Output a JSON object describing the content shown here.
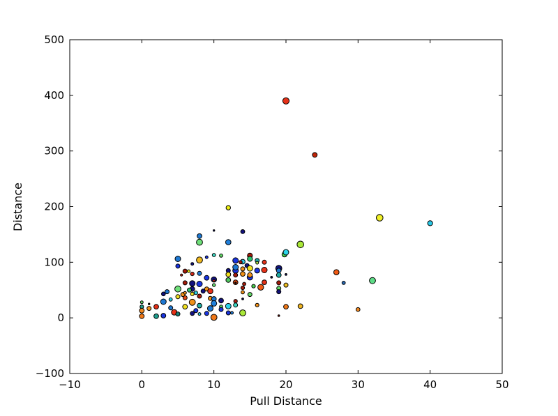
{
  "figure": {
    "background": "#ffffff",
    "frame_color": "#000000"
  },
  "chart_data": {
    "type": "scatter",
    "title": "",
    "xlabel": "Pull Distance",
    "ylabel": "Distance",
    "xlim": [
      -10,
      50
    ],
    "ylim": [
      -100,
      500
    ],
    "xticks": [
      -10,
      0,
      10,
      20,
      30,
      40,
      50
    ],
    "yticks": [
      -100,
      0,
      100,
      200,
      300,
      400,
      500
    ],
    "grid": false,
    "legend": null,
    "marker_edge_color": "#000000",
    "marker_shape": "circle",
    "points": [
      {
        "x": 20,
        "y": 390,
        "r": 4.6,
        "c": "#e63118"
      },
      {
        "x": 24,
        "y": 293,
        "r": 3.4,
        "c": "#c02508"
      },
      {
        "x": 33,
        "y": 180,
        "r": 4.8,
        "c": "#f0f028"
      },
      {
        "x": 40,
        "y": 170,
        "r": 3.6,
        "c": "#28c8e6"
      },
      {
        "x": 27,
        "y": 82,
        "r": 3.8,
        "c": "#f05a14"
      },
      {
        "x": 28,
        "y": 63,
        "r": 2.4,
        "c": "#2a6ab4"
      },
      {
        "x": 32,
        "y": 67,
        "r": 4.4,
        "c": "#5ddc86"
      },
      {
        "x": 30,
        "y": 15,
        "r": 2.8,
        "c": "#f08822"
      },
      {
        "x": 12,
        "y": 198,
        "r": 3.2,
        "c": "#eef014"
      },
      {
        "x": 10,
        "y": 157,
        "r": 1.2,
        "c": "#101060"
      },
      {
        "x": 14,
        "y": 155,
        "r": 2.9,
        "c": "#12127e"
      },
      {
        "x": 8,
        "y": 147,
        "r": 3.4,
        "c": "#1e78d2"
      },
      {
        "x": 8,
        "y": 136,
        "r": 4.4,
        "c": "#6fe07a"
      },
      {
        "x": 12,
        "y": 136,
        "r": 3.8,
        "c": "#2080dc"
      },
      {
        "x": 22,
        "y": 132,
        "r": 4.8,
        "c": "#aae838"
      },
      {
        "x": 19.8,
        "y": 114,
        "r": 3.6,
        "c": "#49d04e"
      },
      {
        "x": 20,
        "y": 118,
        "r": 4.0,
        "c": "#2cd3e8"
      },
      {
        "x": 5,
        "y": 106,
        "r": 4.0,
        "c": "#1e78d2"
      },
      {
        "x": 8,
        "y": 104,
        "r": 4.4,
        "c": "#f0b81e"
      },
      {
        "x": 10,
        "y": 113,
        "r": 2.4,
        "c": "#3cd6c0"
      },
      {
        "x": 11,
        "y": 112,
        "r": 2.4,
        "c": "#62d868"
      },
      {
        "x": 9,
        "y": 109,
        "r": 2.0,
        "c": "#1a35e0"
      },
      {
        "x": 7,
        "y": 97,
        "r": 2.0,
        "c": "#12127e"
      },
      {
        "x": 13,
        "y": 103,
        "r": 4.0,
        "c": "#1a35e0"
      },
      {
        "x": 14,
        "y": 101,
        "r": 3.4,
        "c": "#30c8e8"
      },
      {
        "x": 13.7,
        "y": 100,
        "r": 2.4,
        "c": "#a51b0b"
      },
      {
        "x": 15,
        "y": 112,
        "r": 3.6,
        "c": "#a51b0b"
      },
      {
        "x": 15,
        "y": 106,
        "r": 3.6,
        "c": "#2dbf6e"
      },
      {
        "x": 16,
        "y": 103,
        "r": 3.0,
        "c": "#1faaa0"
      },
      {
        "x": 17,
        "y": 100,
        "r": 3.0,
        "c": "#e63118"
      },
      {
        "x": 16,
        "y": 99,
        "r": 2.0,
        "c": "#b4ec46"
      },
      {
        "x": 5,
        "y": 93,
        "r": 3.0,
        "c": "#1a35e0"
      },
      {
        "x": 6,
        "y": 84,
        "r": 3.0,
        "c": "#a51b0b"
      },
      {
        "x": 6.5,
        "y": 84,
        "r": 2.0,
        "c": "#f0f017"
      },
      {
        "x": 7,
        "y": 79,
        "r": 2.6,
        "c": "#d02818"
      },
      {
        "x": 5.5,
        "y": 77,
        "r": 1.6,
        "c": "#d02818"
      },
      {
        "x": 8,
        "y": 80,
        "r": 3.0,
        "c": "#1e78d2"
      },
      {
        "x": 9,
        "y": 72,
        "r": 3.4,
        "c": "#1a35e0"
      },
      {
        "x": 10,
        "y": 69,
        "r": 3.8,
        "c": "#12127e"
      },
      {
        "x": 10,
        "y": 67,
        "r": 1.6,
        "c": "#e63118"
      },
      {
        "x": 10,
        "y": 59,
        "r": 2.2,
        "c": "#62d868"
      },
      {
        "x": 12,
        "y": 85,
        "r": 3.0,
        "c": "#12127e"
      },
      {
        "x": 12,
        "y": 78,
        "r": 3.4,
        "c": "#f0e020"
      },
      {
        "x": 13,
        "y": 85,
        "r": 4.0,
        "c": "#1a35e0"
      },
      {
        "x": 12,
        "y": 68,
        "r": 3.4,
        "c": "#50c860"
      },
      {
        "x": 13,
        "y": 77,
        "r": 3.0,
        "c": "#a51b0b"
      },
      {
        "x": 14,
        "y": 79,
        "r": 3.4,
        "c": "#f09018"
      },
      {
        "x": 13,
        "y": 64,
        "r": 3.4,
        "c": "#e04814"
      },
      {
        "x": 13,
        "y": 63,
        "r": 1.2,
        "c": "#111111"
      },
      {
        "x": 14.2,
        "y": 61,
        "r": 2.4,
        "c": "#a51b0b"
      },
      {
        "x": 15,
        "y": 73,
        "r": 4.0,
        "c": "#1a35e0"
      },
      {
        "x": 13,
        "y": 91,
        "r": 4.0,
        "c": "#1e78d2"
      },
      {
        "x": 14,
        "y": 88,
        "r": 3.0,
        "c": "#f09018"
      },
      {
        "x": 14.6,
        "y": 94,
        "r": 3.0,
        "c": "#12127e"
      },
      {
        "x": 15,
        "y": 89,
        "r": 4.0,
        "c": "#f0e020"
      },
      {
        "x": 16,
        "y": 85,
        "r": 3.6,
        "c": "#1a35e0"
      },
      {
        "x": 17,
        "y": 86,
        "r": 4.0,
        "c": "#e63118"
      },
      {
        "x": 15,
        "y": 77,
        "r": 3.4,
        "c": "#f09018"
      },
      {
        "x": 19,
        "y": 89,
        "r": 4.4,
        "c": "#12127e"
      },
      {
        "x": 19,
        "y": 85,
        "r": 3.4,
        "c": "#1e78d2"
      },
      {
        "x": 19,
        "y": 77,
        "r": 3.4,
        "c": "#1faaa0"
      },
      {
        "x": 19,
        "y": 63,
        "r": 3.0,
        "c": "#a51b0b"
      },
      {
        "x": 18,
        "y": 73,
        "r": 1.4,
        "c": "#101060"
      },
      {
        "x": 20,
        "y": 78,
        "r": 1.4,
        "c": "#101060"
      },
      {
        "x": 17,
        "y": 64,
        "r": 3.4,
        "c": "#e63118"
      },
      {
        "x": 20,
        "y": 59,
        "r": 3.0,
        "c": "#f0c020"
      },
      {
        "x": 19,
        "y": 53,
        "r": 3.0,
        "c": "#62d868"
      },
      {
        "x": 19,
        "y": 47,
        "r": 3.0,
        "c": "#12127e"
      },
      {
        "x": 16.5,
        "y": 55,
        "r": 4.2,
        "c": "#f05a14"
      },
      {
        "x": 15.5,
        "y": 57,
        "r": 2.6,
        "c": "#49d04e"
      },
      {
        "x": 14,
        "y": 54,
        "r": 2.6,
        "c": "#a51b0b"
      },
      {
        "x": 14,
        "y": 46,
        "r": 2.4,
        "c": "#f09018"
      },
      {
        "x": 15,
        "y": 42,
        "r": 3.0,
        "c": "#62d868"
      },
      {
        "x": 14,
        "y": 34,
        "r": 1.4,
        "c": "#101060"
      },
      {
        "x": 13,
        "y": 30,
        "r": 2.6,
        "c": "#b02010"
      },
      {
        "x": 16,
        "y": 23,
        "r": 2.6,
        "c": "#f09018"
      },
      {
        "x": 20,
        "y": 20,
        "r": 3.4,
        "c": "#f07818"
      },
      {
        "x": 22,
        "y": 21,
        "r": 3.4,
        "c": "#eeb422"
      },
      {
        "x": 19,
        "y": 4,
        "r": 1.3,
        "c": "#801008"
      },
      {
        "x": 0,
        "y": 20,
        "r": 2.6,
        "c": "#1f9e8e"
      },
      {
        "x": 0,
        "y": 13,
        "r": 3.4,
        "c": "#f08822"
      },
      {
        "x": 0,
        "y": 3,
        "r": 3.4,
        "c": "#f07818"
      },
      {
        "x": 1,
        "y": 17,
        "r": 3.0,
        "c": "#f09018"
      },
      {
        "x": 2,
        "y": 20,
        "r": 3.4,
        "c": "#e63118"
      },
      {
        "x": 0,
        "y": 28,
        "r": 2.0,
        "c": "#62d868"
      },
      {
        "x": 1,
        "y": 25,
        "r": 1.2,
        "c": "#111111"
      },
      {
        "x": 2,
        "y": 3,
        "r": 3.4,
        "c": "#1f9e8e"
      },
      {
        "x": 3,
        "y": 4,
        "r": 3.4,
        "c": "#1a35e0"
      },
      {
        "x": 3,
        "y": 43,
        "r": 2.8,
        "c": "#12127e"
      },
      {
        "x": 3.5,
        "y": 47,
        "r": 3.0,
        "c": "#1e78d2"
      },
      {
        "x": 3,
        "y": 29,
        "r": 4.0,
        "c": "#1e78d2"
      },
      {
        "x": 4,
        "y": 33,
        "r": 2.4,
        "c": "#2cd3e8"
      },
      {
        "x": 5,
        "y": 38,
        "r": 3.0,
        "c": "#f0e020"
      },
      {
        "x": 6,
        "y": 36,
        "r": 3.0,
        "c": "#e04818"
      },
      {
        "x": 5.7,
        "y": 42,
        "r": 3.0,
        "c": "#f09018"
      },
      {
        "x": 5,
        "y": 52,
        "r": 4.4,
        "c": "#6fe07a"
      },
      {
        "x": 7,
        "y": 52,
        "r": 3.4,
        "c": "#12127e"
      },
      {
        "x": 8,
        "y": 39,
        "r": 3.0,
        "c": "#a51b0b"
      },
      {
        "x": 8.5,
        "y": 48,
        "r": 3.0,
        "c": "#12127e"
      },
      {
        "x": 9,
        "y": 52,
        "r": 3.0,
        "c": "#f09018"
      },
      {
        "x": 9.5,
        "y": 48,
        "r": 3.8,
        "c": "#e63118"
      },
      {
        "x": 9.5,
        "y": 35,
        "r": 3.0,
        "c": "#f09018"
      },
      {
        "x": 10,
        "y": 34,
        "r": 3.4,
        "c": "#1e78d2"
      },
      {
        "x": 10,
        "y": 26,
        "r": 4.0,
        "c": "#2080dc"
      },
      {
        "x": 11,
        "y": 31,
        "r": 3.4,
        "c": "#12127e"
      },
      {
        "x": 11,
        "y": 20,
        "r": 2.4,
        "c": "#62d868"
      },
      {
        "x": 12,
        "y": 21,
        "r": 4.0,
        "c": "#2cd3e8"
      },
      {
        "x": 12,
        "y": 9,
        "r": 3.0,
        "c": "#1a35e0"
      },
      {
        "x": 12.5,
        "y": 9,
        "r": 2.0,
        "c": "#1e78d2"
      },
      {
        "x": 13,
        "y": 23,
        "r": 3.0,
        "c": "#3cd6c0"
      },
      {
        "x": 11,
        "y": 15,
        "r": 3.0,
        "c": "#1a35e0"
      },
      {
        "x": 14,
        "y": 9,
        "r": 4.4,
        "c": "#aae838"
      },
      {
        "x": 10,
        "y": 1,
        "r": 4.4,
        "c": "#f07818"
      },
      {
        "x": 9.5,
        "y": 17,
        "r": 4.0,
        "c": "#1e78d2"
      },
      {
        "x": 8,
        "y": 22,
        "r": 3.4,
        "c": "#1faaa0"
      },
      {
        "x": 6,
        "y": 20,
        "r": 3.4,
        "c": "#f0e020"
      },
      {
        "x": 7,
        "y": 28,
        "r": 4.4,
        "c": "#f09018"
      },
      {
        "x": 4.5,
        "y": 10,
        "r": 4.0,
        "c": "#e63118"
      },
      {
        "x": 5,
        "y": 7,
        "r": 3.0,
        "c": "#157f75"
      },
      {
        "x": 4,
        "y": 18,
        "r": 3.0,
        "c": "#1e78d2"
      },
      {
        "x": 7,
        "y": 8,
        "r": 3.0,
        "c": "#12127e"
      },
      {
        "x": 7.5,
        "y": 13,
        "r": 3.0,
        "c": "#1a35e0"
      },
      {
        "x": 8,
        "y": 7,
        "r": 2.0,
        "c": "#2cd3e8"
      },
      {
        "x": 9,
        "y": 8,
        "r": 3.0,
        "c": "#1a35e0"
      },
      {
        "x": 6,
        "y": 63,
        "r": 3.0,
        "c": "#a51b0b"
      },
      {
        "x": 7,
        "y": 62,
        "r": 4.0,
        "c": "#12127e"
      },
      {
        "x": 8,
        "y": 61,
        "r": 4.0,
        "c": "#1a35e0"
      },
      {
        "x": 6.6,
        "y": 50,
        "r": 3.0,
        "c": "#2dbf6e"
      },
      {
        "x": 6,
        "y": 45,
        "r": 2.0,
        "c": "#f09018"
      },
      {
        "x": 7,
        "y": 43,
        "r": 2.6,
        "c": "#f0e020"
      },
      {
        "x": 7.5,
        "y": 45,
        "r": 2.6,
        "c": "#2cd3e8"
      }
    ]
  }
}
